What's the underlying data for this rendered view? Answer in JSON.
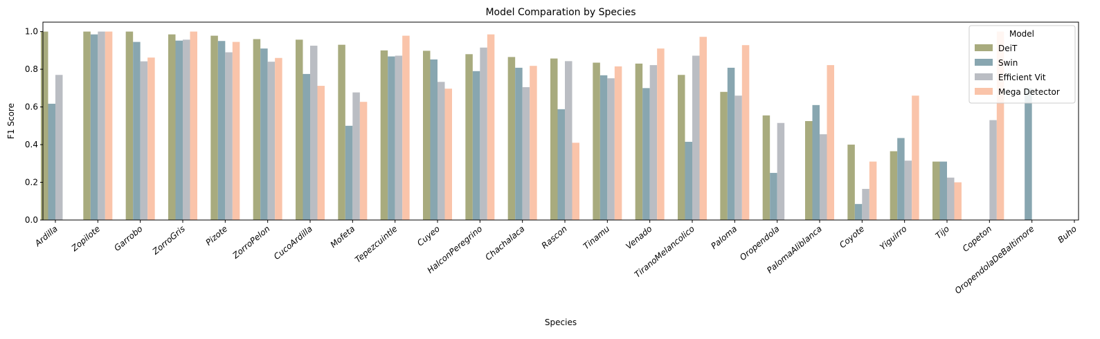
{
  "chart_data": {
    "type": "bar",
    "title": "Model Comparation by Species",
    "xlabel": "Species",
    "ylabel": "F1 Score",
    "ylim": [
      0,
      1.05
    ],
    "yticks": [
      "0.0",
      "0.2",
      "0.4",
      "0.6",
      "0.8",
      "1.0"
    ],
    "legend": {
      "title": "Model",
      "placement": "top-right"
    },
    "categories": [
      "Ardilla",
      "Zopilote",
      "Garrobo",
      "ZorroGris",
      "Pizote",
      "ZorroPelon",
      "CucoArdilla",
      "Mofeta",
      "Tepezcuintle",
      "Cuyeo",
      "HalconPeregrino",
      "Chachalaca",
      "Rascon",
      "Tinamu",
      "Venado",
      "TiranoMelancolico",
      "Paloma",
      "Oropendola",
      "PalomaAliblanca",
      "Coyote",
      "Yiguirro",
      "Tijo",
      "Copeton",
      "OropendolaDeBaltimore",
      "Buho"
    ],
    "series": [
      {
        "name": "DeiT",
        "color": "#a8ab7e",
        "values": [
          1.0,
          1.0,
          1.0,
          0.985,
          0.978,
          0.96,
          0.957,
          0.93,
          0.9,
          0.898,
          0.88,
          0.865,
          0.857,
          0.835,
          0.83,
          0.77,
          0.68,
          0.555,
          0.525,
          0.4,
          0.365,
          0.31,
          0,
          0,
          0
        ]
      },
      {
        "name": "Swin",
        "color": "#88a6b0",
        "values": [
          0.617,
          0.985,
          0.945,
          0.952,
          0.95,
          0.91,
          0.775,
          0.5,
          0.868,
          0.852,
          0.79,
          0.808,
          0.588,
          0.768,
          0.7,
          0.415,
          0.808,
          0.25,
          0.61,
          0.085,
          0.435,
          0.31,
          0,
          0.7,
          0
        ]
      },
      {
        "name": "Efficient Vit",
        "color": "#babdc3",
        "values": [
          0.77,
          1.0,
          0.842,
          0.957,
          0.89,
          0.84,
          0.925,
          0.677,
          0.872,
          0.733,
          0.915,
          0.705,
          0.843,
          0.752,
          0.822,
          0.872,
          0.66,
          0.515,
          0.455,
          0.165,
          0.315,
          0.225,
          0.53,
          0,
          0
        ]
      },
      {
        "name": "Mega Detector",
        "color": "#fac4aa",
        "values": [
          0,
          1.0,
          0.862,
          1.0,
          0.945,
          0.86,
          0.712,
          0.627,
          0.978,
          0.697,
          0.985,
          0.818,
          0.41,
          0.815,
          0.91,
          0.972,
          0.928,
          0,
          0.822,
          0.31,
          0.66,
          0.2,
          1.0,
          0,
          0
        ]
      }
    ]
  }
}
